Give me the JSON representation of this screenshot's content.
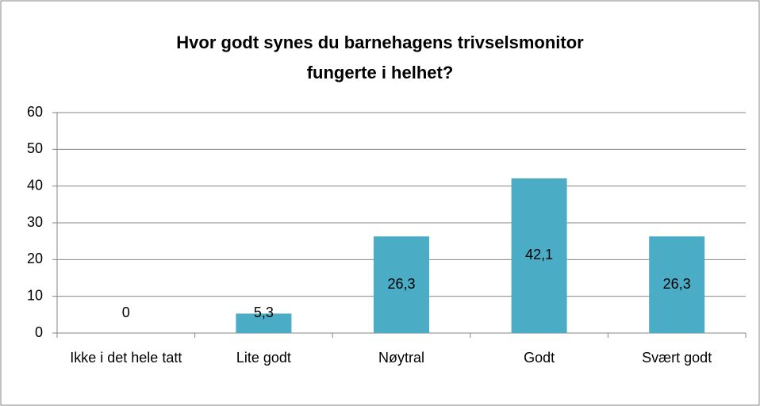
{
  "chart_data": {
    "type": "bar",
    "title": [
      "Hvor godt synes du barnehagens trivselsmonitor",
      "fungerte i helhet?"
    ],
    "categories": [
      "Ikke i det hele tatt",
      "Lite godt",
      "Nøytral",
      "Godt",
      "Svært godt"
    ],
    "values": [
      0,
      5.3,
      26.3,
      42.1,
      26.3
    ],
    "value_labels": [
      "0",
      "5,3",
      "26,3",
      "42,1",
      "26,3"
    ],
    "color": "#4bacc6",
    "ylim": [
      0,
      60
    ],
    "yticks": [
      0,
      10,
      20,
      30,
      40,
      50,
      60
    ],
    "grid": true
  }
}
